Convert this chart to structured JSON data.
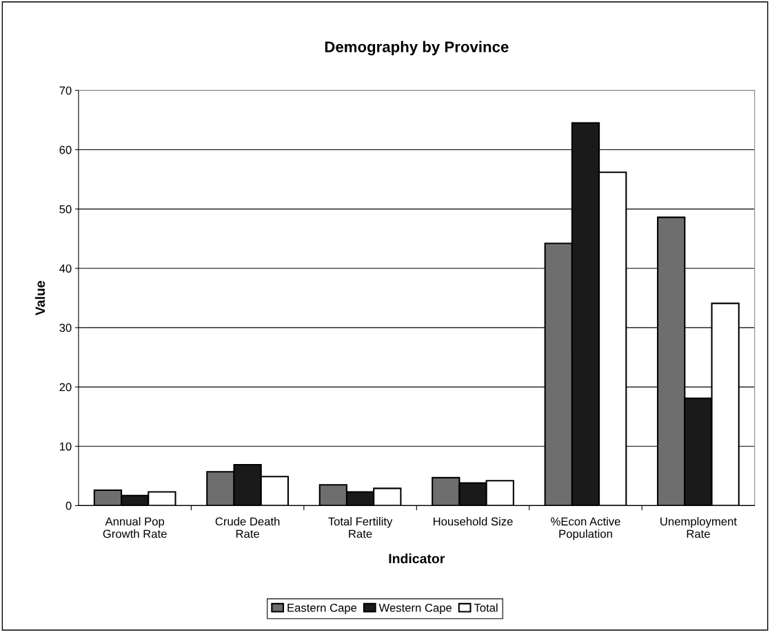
{
  "chart_data": {
    "type": "bar",
    "title": "Demography by Province",
    "xlabel": "Indicator",
    "ylabel": "Value",
    "categories": [
      "Annual Pop\nGrowth Rate",
      "Crude Death\nRate",
      "Total Fertility\nRate",
      "Household Size",
      "%Econ Active\nPopulation",
      "Unemployment\nRate"
    ],
    "series": [
      {
        "name": "Eastern Cape",
        "color": "#6e6e6e",
        "values": [
          2.6,
          5.7,
          3.5,
          4.7,
          44.2,
          48.6
        ]
      },
      {
        "name": "Western Cape",
        "color": "#1a1a1a",
        "values": [
          1.7,
          6.9,
          2.3,
          3.8,
          64.5,
          18.1
        ]
      },
      {
        "name": "Total",
        "color": "#ffffff",
        "values": [
          2.3,
          4.9,
          2.9,
          4.2,
          56.2,
          34.1
        ]
      }
    ],
    "ylim": [
      0,
      70
    ],
    "yticks": [
      0,
      10,
      20,
      30,
      40,
      50,
      60,
      70
    ],
    "grid": "y",
    "legend": "bottom"
  }
}
